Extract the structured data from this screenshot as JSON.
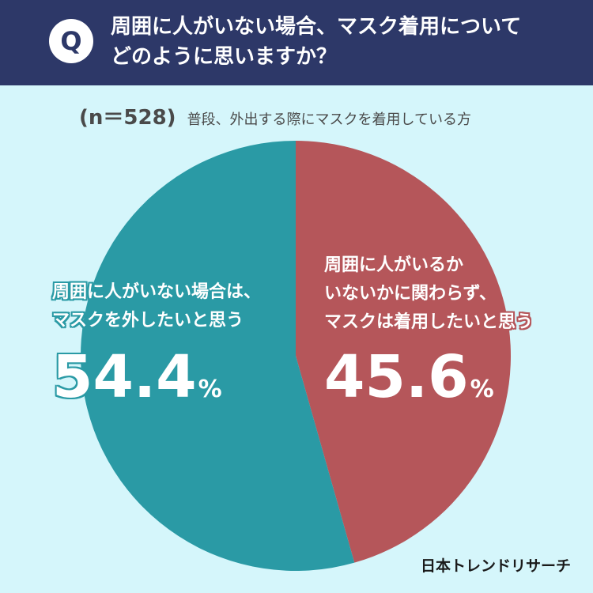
{
  "header": {
    "badge": "Q",
    "question_line1": "周囲に人がいない場合、マスク着用について",
    "question_line2": "どのように思いますか？"
  },
  "subtitle": {
    "sample_size": "(n＝528)",
    "respondents": "普段、外出する際にマスクを着用している方"
  },
  "chart_data": {
    "type": "pie",
    "title": "周囲に人がいない場合、マスク着用について どのように思いますか？",
    "start": "top",
    "direction": "clockwise",
    "slices": [
      {
        "label_line1": "周囲に人がいるか",
        "label_line2": "いないかに関わらず、",
        "label_line3": "マスクは着用したいと思う",
        "value": 45.6,
        "value_text": "45.6",
        "unit": "%",
        "color": "#b5565a"
      },
      {
        "label_line1": "周囲に人がいない場合は、",
        "label_line2": "マスクを外したいと思う",
        "value": 54.4,
        "value_text": "54.4",
        "unit": "%",
        "color": "#2a9aa5"
      }
    ]
  },
  "footer": {
    "logo": "日本トレンドリサーチ"
  },
  "colors": {
    "header_bg": "#2d3868",
    "page_bg": "#d5f6fb"
  }
}
